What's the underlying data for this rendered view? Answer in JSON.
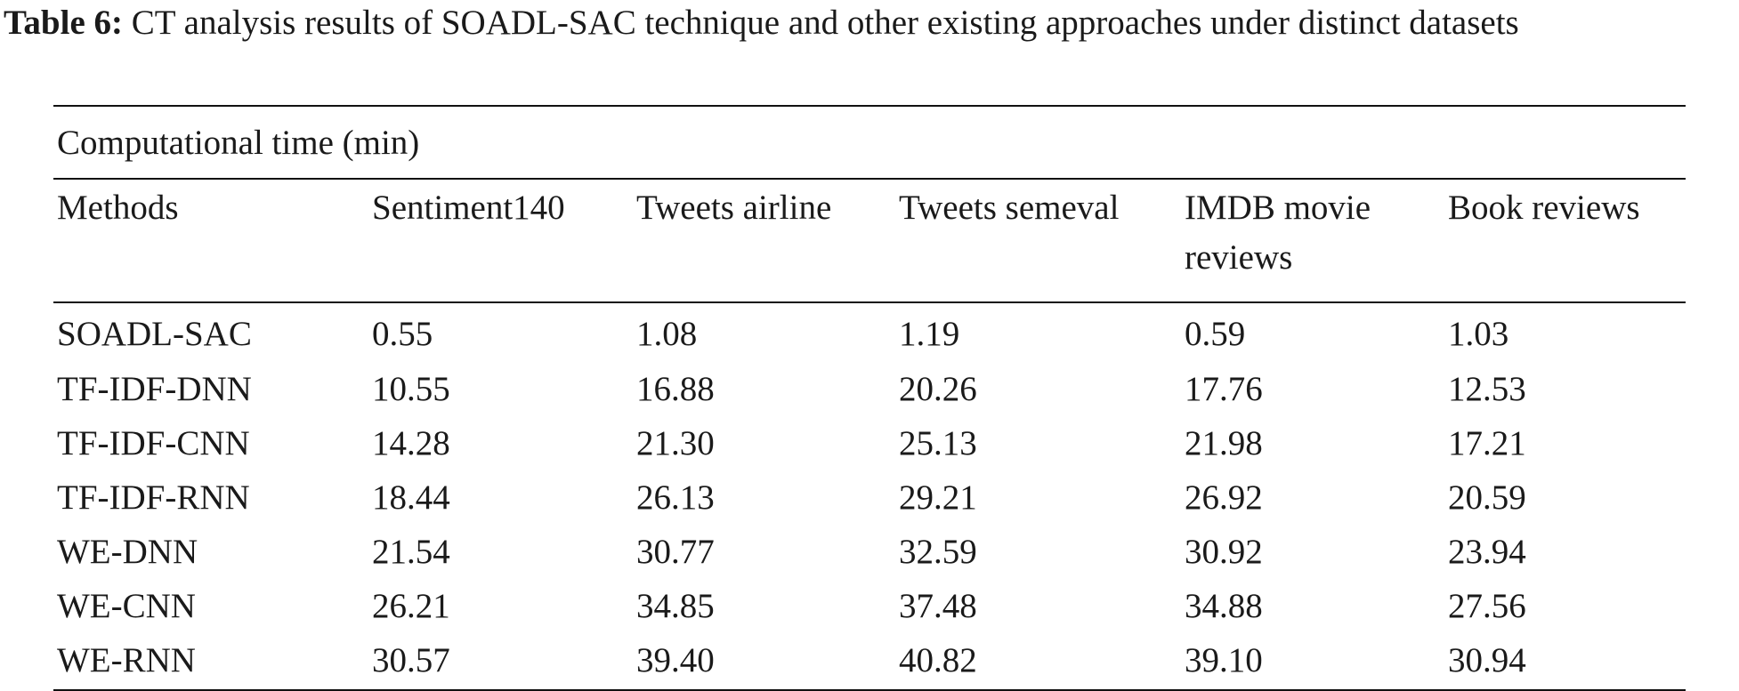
{
  "caption": {
    "label": "Table 6:",
    "text": " CT analysis results of SOADL-SAC technique and other existing approaches under distinct datasets"
  },
  "table": {
    "group_header": "Computational time (min)",
    "columns": [
      "Methods",
      "Sentiment140",
      "Tweets airline",
      "Tweets semeval",
      "IMDB movie reviews",
      "Book reviews"
    ],
    "rows": [
      [
        "SOADL-SAC",
        "0.55",
        "1.08",
        "1.19",
        "0.59",
        "1.03"
      ],
      [
        "TF-IDF-DNN",
        "10.55",
        "16.88",
        "20.26",
        "17.76",
        "12.53"
      ],
      [
        "TF-IDF-CNN",
        "14.28",
        "21.30",
        "25.13",
        "21.98",
        "17.21"
      ],
      [
        "TF-IDF-RNN",
        "18.44",
        "26.13",
        "29.21",
        "26.92",
        "20.59"
      ],
      [
        "WE-DNN",
        "21.54",
        "30.77",
        "32.59",
        "30.92",
        "23.94"
      ],
      [
        "WE-CNN",
        "26.21",
        "34.85",
        "37.48",
        "34.88",
        "27.56"
      ],
      [
        "WE-RNN",
        "30.57",
        "39.40",
        "40.82",
        "39.10",
        "30.94"
      ]
    ]
  }
}
